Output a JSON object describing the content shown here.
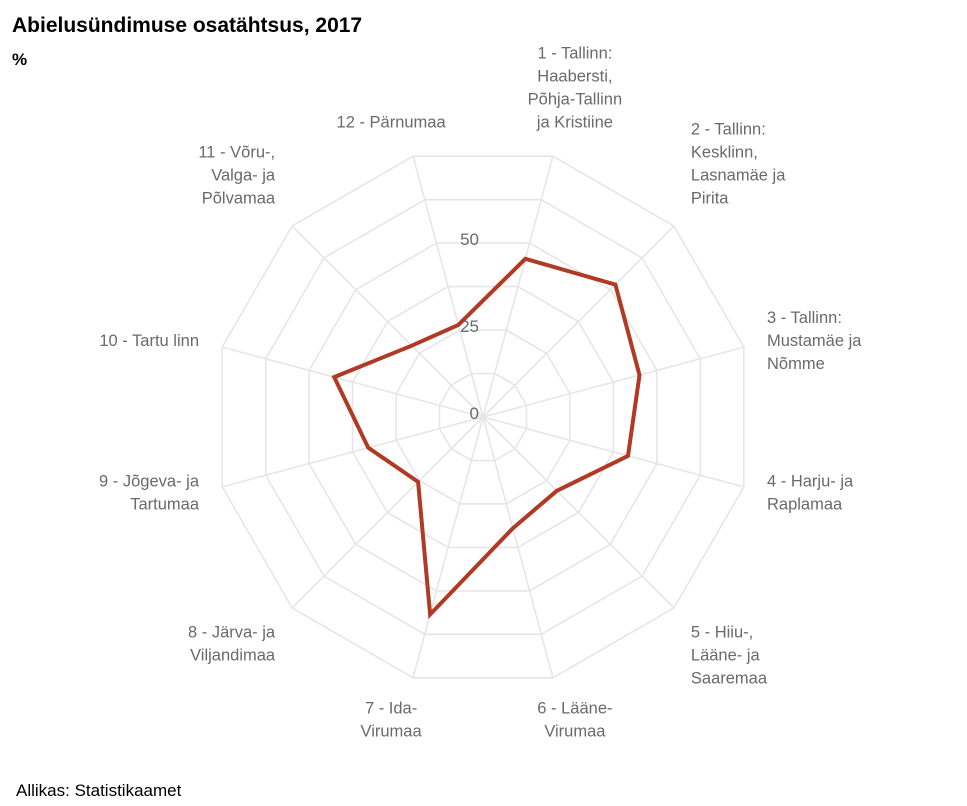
{
  "chart_data": {
    "type": "radar",
    "title": "Abielusündimuse osatähtsus, 2017",
    "subtitle": "%",
    "source": "Allikas: Statistikaamet",
    "ylim": [
      0,
      75
    ],
    "ticks": [
      {
        "value": 0,
        "label": "0"
      },
      {
        "value": 25,
        "label": "25"
      },
      {
        "value": 50,
        "label": "50"
      }
    ],
    "grid_rings": [
      12.5,
      25,
      37.5,
      50,
      62.5,
      75
    ],
    "grid": true,
    "legend": "none",
    "categories": [
      "1 - Tallinn: Haabersti, Põhja-Tallinn ja Kristiine",
      "2 - Tallinn: Kesklinn, Lasnamäe ja Pirita",
      "3 - Tallinn: Mustamäe ja Nõmme",
      "4 - Harju- ja Raplamaa",
      "5 - Hiiu-, Lääne- ja Saaremaa",
      "6 - Lääne-Virumaa",
      "7 - Ida-Virumaa",
      "8 - Järva- ja Viljandimaa",
      "9 - Jõgeva- ja Tartumaa",
      "10 - Tartu linn",
      "11 - Võru-, Valga- ja Põlvamaa",
      "12 - Pärnumaa"
    ],
    "category_lines": [
      [
        "1 - Tallinn:",
        "Haabersti,",
        "Põhja-Tallinn",
        "ja Kristiine"
      ],
      [
        "2 - Tallinn:",
        "Kesklinn,",
        "Lasnamäe ja",
        "Pirita"
      ],
      [
        "3 - Tallinn:",
        "Mustamäe ja",
        "Nõmme"
      ],
      [
        "4 - Harju- ja",
        "Raplamaa"
      ],
      [
        "5 - Hiiu-,",
        "Lääne- ja",
        "Saaremaa"
      ],
      [
        "6 - Lääne-",
        "Virumaa"
      ],
      [
        "7 - Ida-",
        "Virumaa"
      ],
      [
        "8 - Järva- ja",
        "Viljandimaa"
      ],
      [
        "9 - Jõgeva- ja",
        "Tartumaa"
      ],
      [
        "10 - Tartu linn"
      ],
      [
        "11 - Võru-,",
        "Valga- ja",
        "Põlvamaa"
      ],
      [
        "12 - Pärnumaa"
      ]
    ],
    "series": [
      {
        "values": [
          45.5,
          52.0,
          45.0,
          41.7,
          29.0,
          32.0,
          56.8,
          25.5,
          33.0,
          42.8,
          28.0,
          26.5
        ],
        "color": "#b03a24"
      }
    ],
    "colors": {
      "grid": "#e6e6e6",
      "label": "#6a6a6a",
      "series": "#b03a24"
    }
  }
}
